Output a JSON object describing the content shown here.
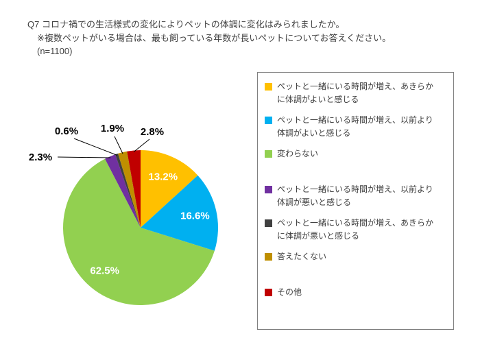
{
  "header": {
    "line1": "Q7 コロナ禍での生活様式の変化によりペットの体調に変化はみられましたか。",
    "line2": "※複数ペットがいる場合は、最も飼っている年数が長いペットについてお答えください。",
    "line3": "(n=1100)"
  },
  "chart_data": {
    "type": "pie",
    "title": "Q7 コロナ禍での生活様式の変化によりペットの体調に変化はみられましたか。",
    "subtitle": "※複数ペットがいる場合は、最も飼っている年数が長いペットについてお答えください。",
    "sample_size_label": "(n=1100)",
    "direction": "clockwise",
    "start_angle_deg": 0,
    "legend_position": "right",
    "slices": [
      {
        "label": "ペットと一緒にいる時間が増え、あきらかに体調がよいと感じる",
        "value": 13.2,
        "display": "13.2%",
        "color": "#FFC000"
      },
      {
        "label": "ペットと一緒にいる時間が増え、以前より体調がよいと感じる",
        "value": 16.6,
        "display": "16.6%",
        "color": "#00B0F0"
      },
      {
        "label": "変わらない",
        "value": 62.5,
        "display": "62.5%",
        "color": "#92D050"
      },
      {
        "label": "ペットと一緒にいる時間が増え、以前より体調が悪いと感じる",
        "value": 2.3,
        "display": "2.3%",
        "color": "#7030A0"
      },
      {
        "label": "ペットと一緒にいる時間が増え、あきらかに体調が悪いと感じる",
        "value": 0.6,
        "display": "0.6%",
        "color": "#404040"
      },
      {
        "label": "答えたくない",
        "value": 1.9,
        "display": "1.9%",
        "color": "#BF8F00"
      },
      {
        "label": "その他",
        "value": 2.8,
        "display": "2.8%",
        "color": "#C00000"
      }
    ],
    "legend_groups": [
      [
        0,
        1,
        2
      ],
      [
        3,
        4,
        5
      ],
      [
        6
      ]
    ]
  }
}
